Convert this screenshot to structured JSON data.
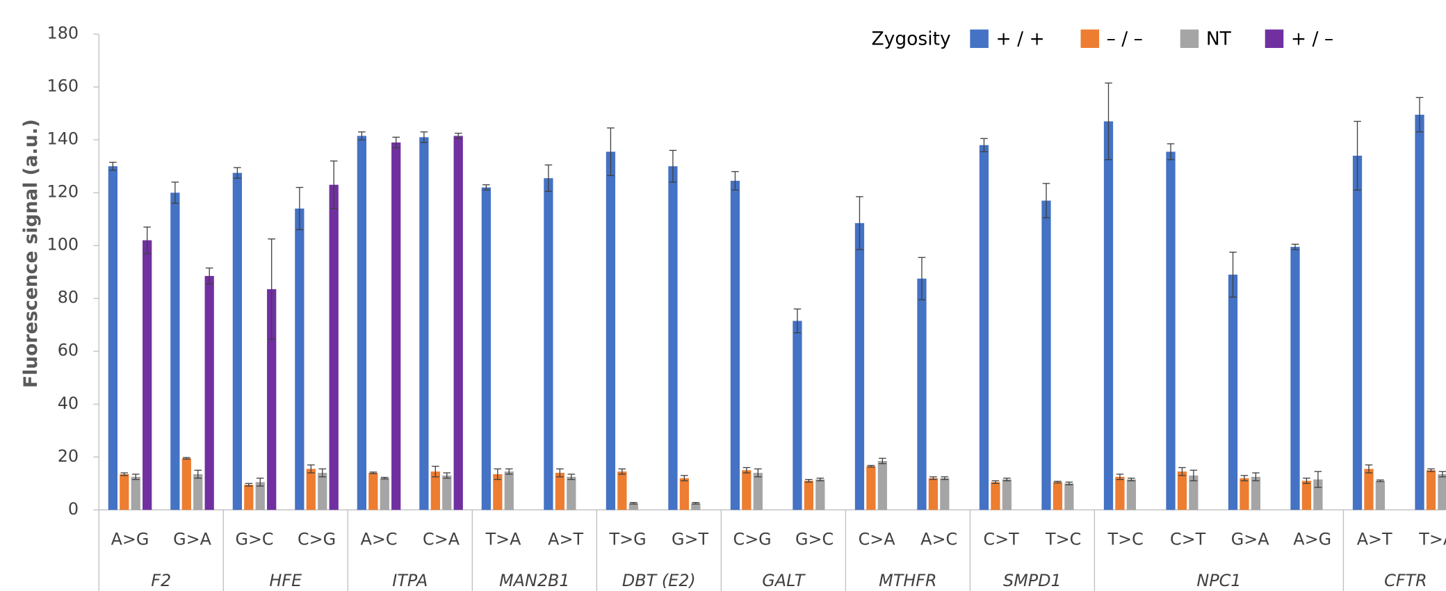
{
  "chart_data": {
    "type": "bar",
    "y_axis_label": "Fluorescence signal (a.u.)",
    "legend_title": "Zygosity",
    "categories": [
      "A>G",
      "G>A",
      "G>C",
      "C>G",
      "A>C",
      "C>A",
      "T>A",
      "A>T",
      "T>G",
      "G>T",
      "C>G",
      "G>C",
      "C>A",
      "A>C",
      "C>T",
      "T>C",
      "T>C",
      "C>T",
      "G>A",
      "A>G",
      "A>T",
      "T>A"
    ],
    "groups": [
      {
        "name": "F2",
        "size": 2
      },
      {
        "name": "HFE",
        "size": 2
      },
      {
        "name": "ITPA",
        "size": 2
      },
      {
        "name": "MAN2B1",
        "size": 2
      },
      {
        "name": "DBT (E2)",
        "size": 2
      },
      {
        "name": "GALT",
        "size": 2
      },
      {
        "name": "MTHFR",
        "size": 2
      },
      {
        "name": "SMPD1",
        "size": 2
      },
      {
        "name": "NPC1",
        "size": 4
      },
      {
        "name": "CFTR",
        "size": 2
      }
    ],
    "series": [
      {
        "name": "+ / +",
        "color": "#4472c4",
        "values": [
          130,
          120,
          127.5,
          114,
          141.5,
          141,
          122,
          125.5,
          135.5,
          130,
          124.5,
          71.5,
          108.5,
          87.5,
          138,
          117,
          147,
          135.5,
          89,
          99.5,
          134,
          149.5
        ],
        "errors": [
          1.5,
          4,
          2,
          8,
          1.5,
          2,
          1,
          5,
          9,
          6,
          3.5,
          4.5,
          10,
          8,
          2.5,
          6.5,
          14.5,
          3,
          8.5,
          1,
          13,
          6.5
        ]
      },
      {
        "name": "– / –",
        "color": "#ed7d31",
        "values": [
          13.5,
          19.5,
          9.5,
          15.5,
          14,
          14.5,
          13.5,
          14,
          14.5,
          12,
          15,
          11,
          16.5,
          12,
          10.5,
          10.5,
          12.5,
          14.5,
          12,
          11,
          15.5,
          15
        ],
        "errors": [
          0.5,
          0.3,
          0.5,
          1.5,
          0.3,
          2,
          2,
          1.5,
          1,
          1,
          1,
          0.5,
          0.3,
          0.5,
          0.5,
          0.3,
          1,
          1.5,
          1,
          1,
          1.5,
          0.5
        ]
      },
      {
        "name": "NT",
        "color": "#a5a5a5",
        "values": [
          12.5,
          13.5,
          10.5,
          14,
          12,
          13,
          14.5,
          12.5,
          2.5,
          2.5,
          14,
          11.5,
          18.5,
          12,
          11.5,
          10,
          11.5,
          13,
          12.5,
          11.5,
          11,
          13.5
        ],
        "errors": [
          1,
          1.5,
          1.5,
          1.5,
          0.3,
          1,
          1,
          1,
          0.3,
          0.3,
          1.5,
          0.5,
          1,
          0.5,
          0.5,
          0.5,
          0.5,
          2,
          1.5,
          3,
          0.3,
          1
        ]
      },
      {
        "name": "+ / –",
        "color": "#7030a0",
        "values": [
          102,
          88.5,
          83.5,
          123,
          139,
          141.5,
          null,
          null,
          null,
          null,
          null,
          null,
          null,
          null,
          null,
          null,
          null,
          null,
          null,
          null,
          null,
          null
        ],
        "errors": [
          5,
          3,
          19,
          9,
          2,
          1,
          null,
          null,
          null,
          null,
          null,
          null,
          null,
          null,
          null,
          null,
          null,
          null,
          null,
          null,
          null,
          null
        ]
      }
    ],
    "ylim": [
      0,
      180
    ],
    "yticks": [
      0,
      20,
      40,
      60,
      80,
      100,
      120,
      140,
      160,
      180
    ],
    "grid": false
  }
}
